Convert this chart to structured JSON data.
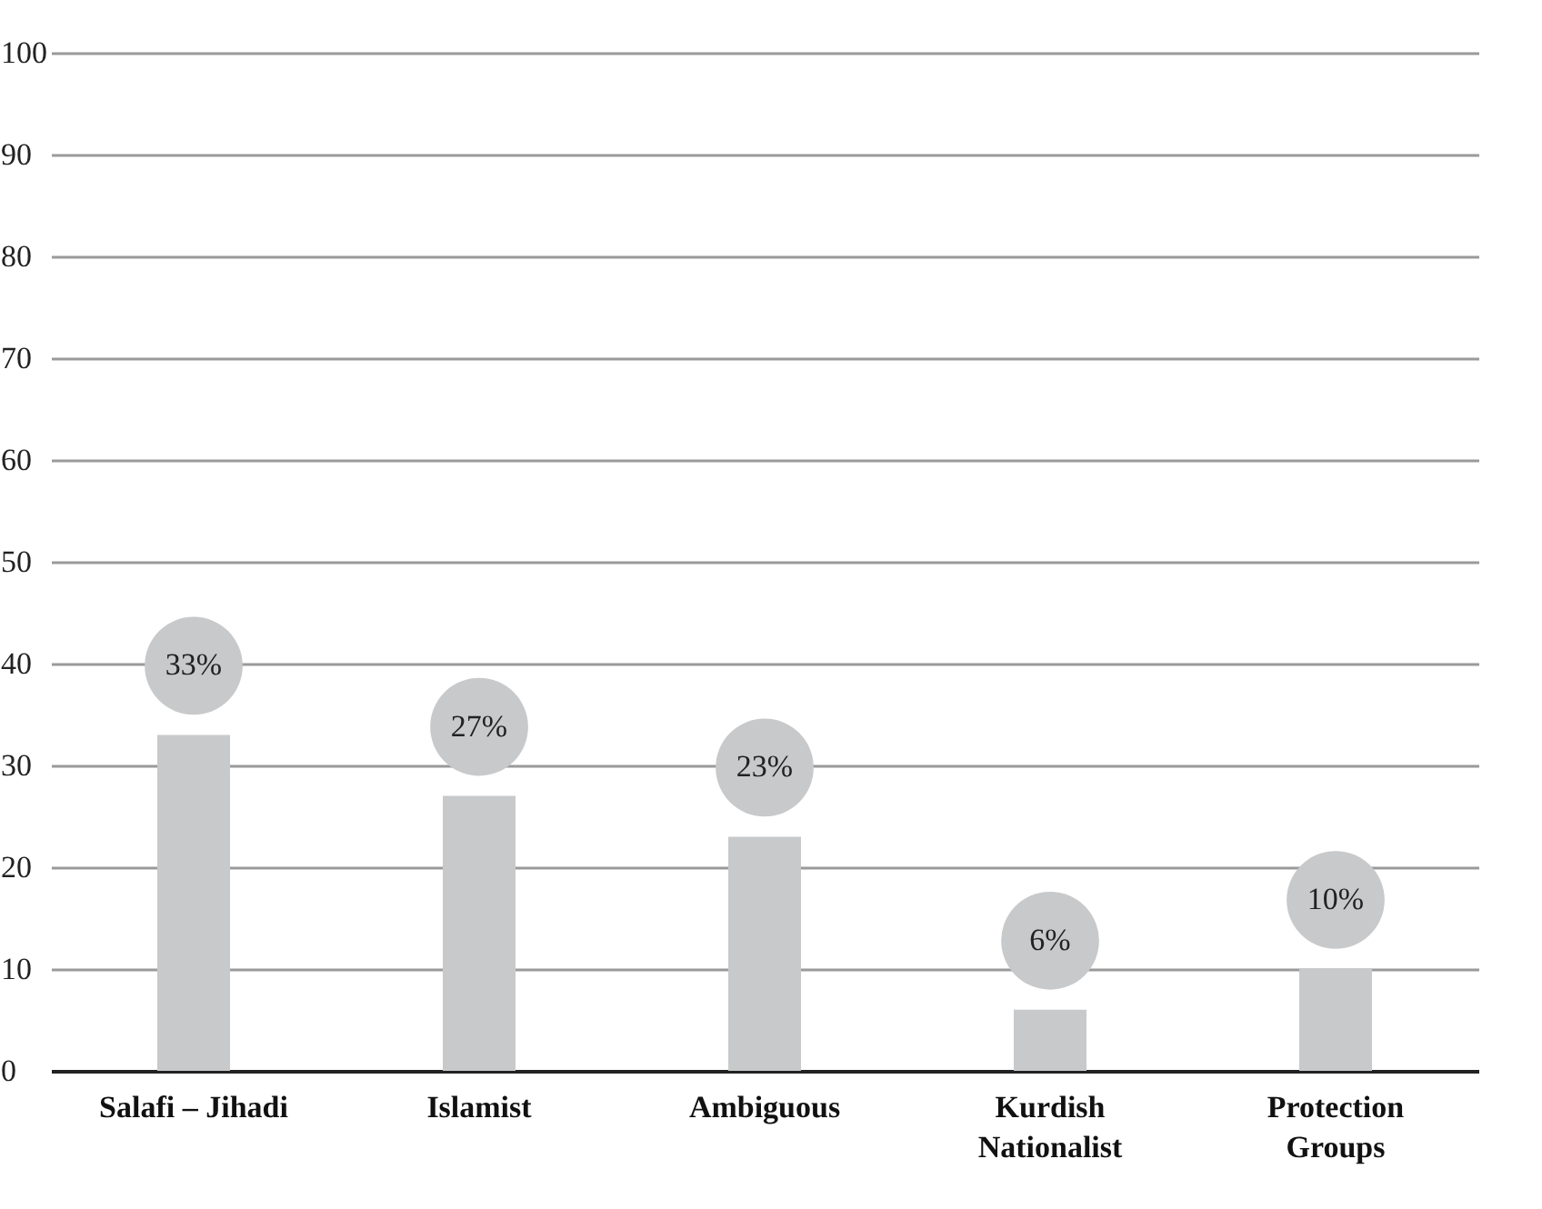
{
  "chart_data": {
    "type": "bar",
    "categories": [
      "Salafi – Jihadi",
      "Islamist",
      "Ambiguous",
      "Kurdish Nationalist",
      "Protection Groups"
    ],
    "values": [
      33,
      27,
      23,
      6,
      10
    ],
    "value_labels": [
      "33%",
      "27%",
      "23%",
      "6%",
      "10%"
    ],
    "color": "#c8c9ca",
    "ylim": [
      0,
      100
    ],
    "yticks": [
      0,
      10,
      20,
      30,
      40,
      50,
      60,
      70,
      80,
      90,
      100
    ],
    "grid": "y"
  }
}
